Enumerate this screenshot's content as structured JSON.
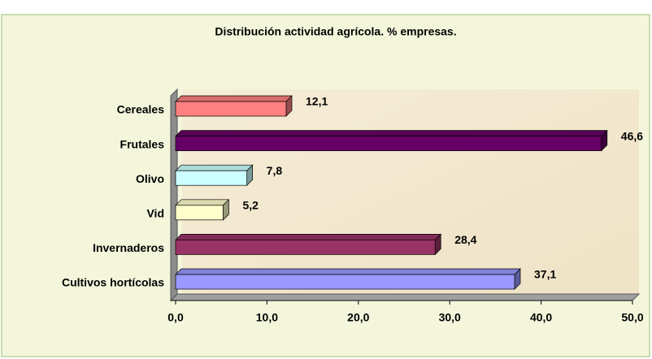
{
  "chart_data": {
    "type": "bar",
    "orientation": "horizontal",
    "title": "Distribución actividad agrícola. % empresas.",
    "categories": [
      "Cereales",
      "Frutales",
      "Olivo",
      "Vid",
      "Invernaderos",
      "Cultivos hortícolas"
    ],
    "values": [
      12.1,
      46.6,
      7.8,
      5.2,
      28.4,
      37.1
    ],
    "value_labels": [
      "12,1",
      "46,6",
      "7,8",
      "5,2",
      "28,4",
      "37,1"
    ],
    "colors": [
      "#ff8080",
      "#660066",
      "#ccffff",
      "#ffffcc",
      "#993366",
      "#9999ff"
    ],
    "xlim": [
      0,
      50
    ],
    "xticks": [
      {
        "value": 0,
        "label": "0,0"
      },
      {
        "value": 10,
        "label": "10,0"
      },
      {
        "value": 20,
        "label": "20,0"
      },
      {
        "value": 30,
        "label": "30,0"
      },
      {
        "value": 40,
        "label": "40,0"
      },
      {
        "value": 50,
        "label": "50,0"
      }
    ]
  }
}
